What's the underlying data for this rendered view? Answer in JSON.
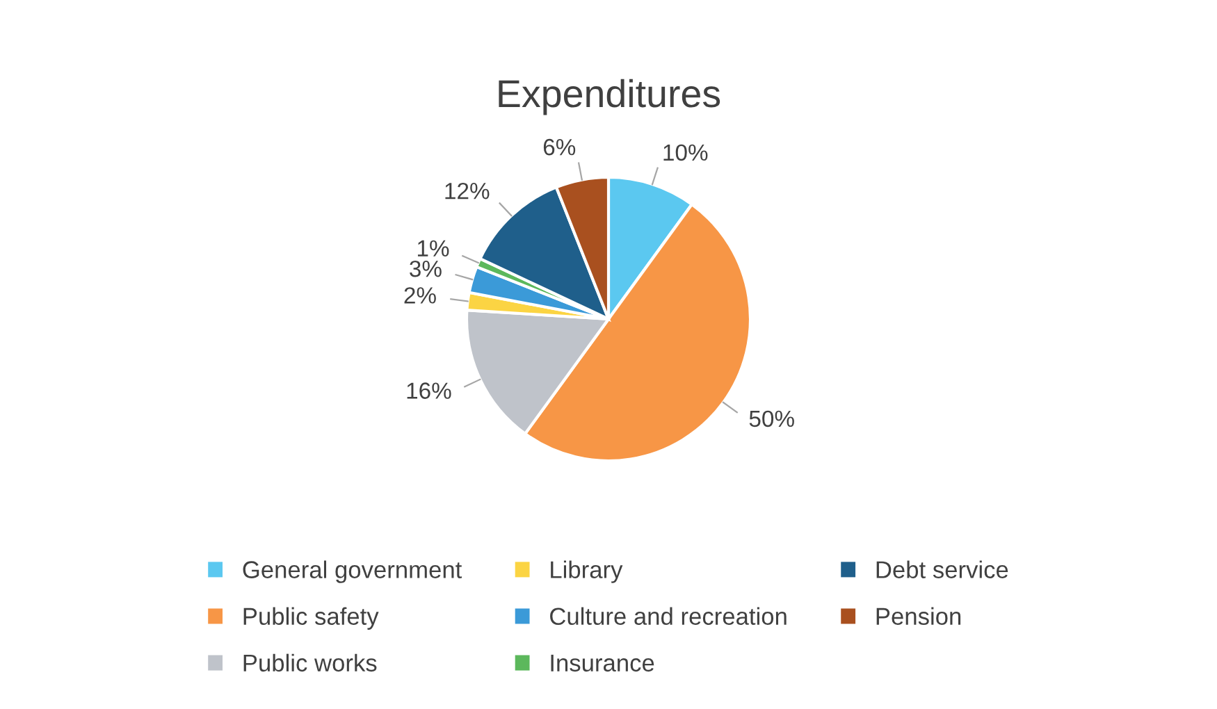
{
  "chart_data": {
    "type": "pie",
    "title": "Expenditures",
    "categories": [
      "General government",
      "Public safety",
      "Public works",
      "Library",
      "Culture and recreation",
      "Insurance",
      "Debt service",
      "Pension"
    ],
    "values": [
      10,
      50,
      16,
      2,
      3,
      1,
      12,
      6
    ],
    "value_labels": [
      "10%",
      "50%",
      "16%",
      "2%",
      "3%",
      "1%",
      "12%",
      "6%"
    ],
    "colors": [
      "#5bc8f0",
      "#f79646",
      "#bfc3ca",
      "#fbd443",
      "#3b9ad8",
      "#5cb85c",
      "#1f5f8b",
      "#a9501f"
    ],
    "legend": "bottom"
  }
}
